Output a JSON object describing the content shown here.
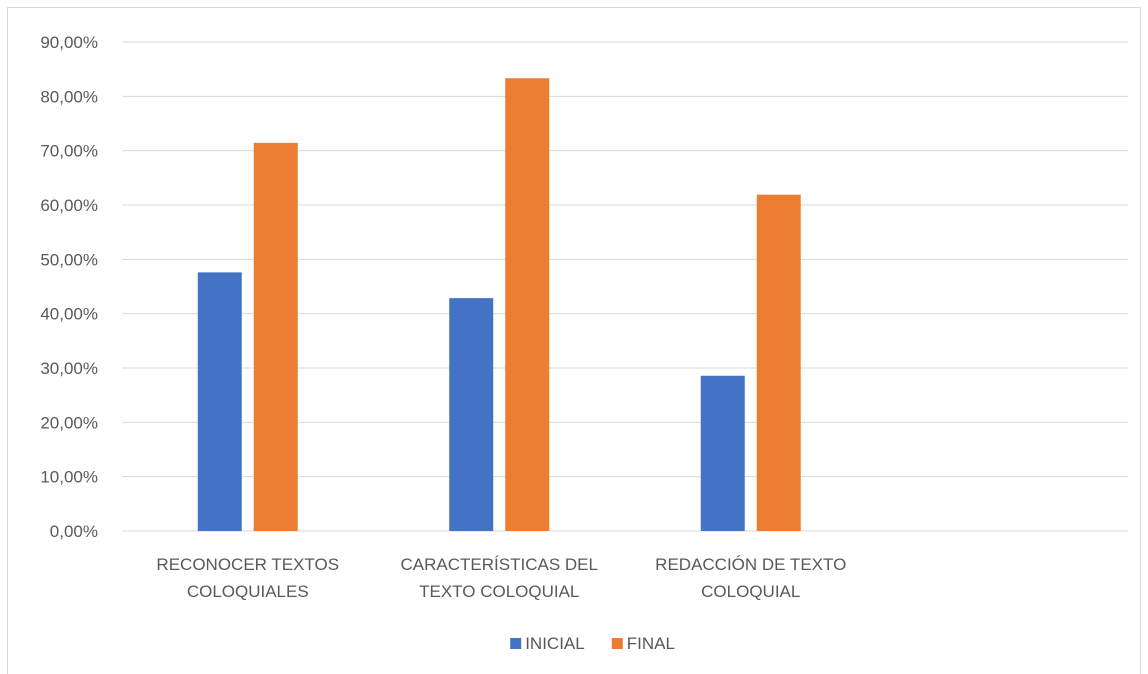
{
  "chart_data": {
    "type": "bar",
    "categories": [
      [
        "RECONOCER TEXTOS",
        "COLOQUIALES"
      ],
      [
        "CARACTERÍSTICAS DEL",
        "TEXTO COLOQUIAL"
      ],
      [
        "REDACCIÓN DE TEXTO",
        "COLOQUIAL"
      ],
      [
        ""
      ]
    ],
    "series": [
      {
        "name": "INICIAL",
        "color": "#4472c4",
        "values": [
          47.6,
          42.86,
          28.57,
          null
        ]
      },
      {
        "name": "FINAL",
        "color": "#ed7d31",
        "values": [
          71.43,
          83.33,
          61.9,
          null
        ]
      }
    ],
    "ylim": [
      0,
      90
    ],
    "yticks": [
      "0,00%",
      "10,00%",
      "20,00%",
      "30,00%",
      "40,00%",
      "50,00%",
      "60,00%",
      "70,00%",
      "80,00%",
      "90,00%"
    ],
    "grid": true,
    "legend": "bottom",
    "title": "",
    "xlabel": "",
    "ylabel": ""
  }
}
